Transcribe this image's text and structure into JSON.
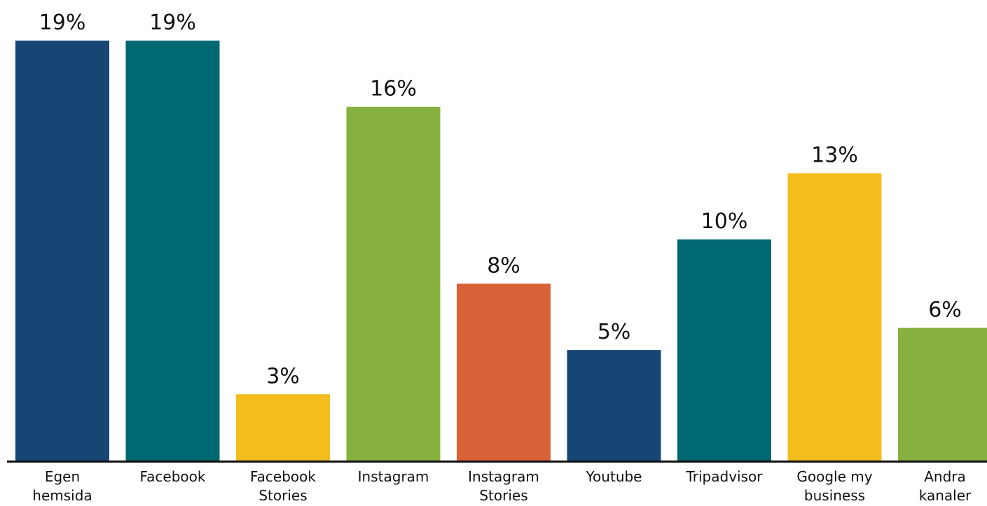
{
  "chart_data": {
    "type": "bar",
    "title": "",
    "xlabel": "",
    "ylabel": "",
    "ylim": [
      0,
      19
    ],
    "grid": false,
    "legend": "none",
    "categories": [
      [
        "Egen",
        "hemsida"
      ],
      [
        "Facebook"
      ],
      [
        "Facebook",
        "Stories"
      ],
      [
        "Instagram"
      ],
      [
        "Instagram",
        "Stories"
      ],
      [
        "Youtube"
      ],
      [
        "Tripadvisor"
      ],
      [
        "Google my",
        "business"
      ],
      [
        "Andra",
        "kanaler"
      ]
    ],
    "values": [
      19,
      19,
      3,
      16,
      8,
      5,
      10,
      13,
      6
    ],
    "value_labels": [
      "19%",
      "19%",
      "3%",
      "16%",
      "8%",
      "5%",
      "10%",
      "13%",
      "6%"
    ],
    "colors": [
      "#174675",
      "#006870",
      "#F3BD1E",
      "#87B13F",
      "#DA6238",
      "#174675",
      "#006870",
      "#F3BD1E",
      "#87B13F"
    ],
    "axis_color": "#111111"
  }
}
